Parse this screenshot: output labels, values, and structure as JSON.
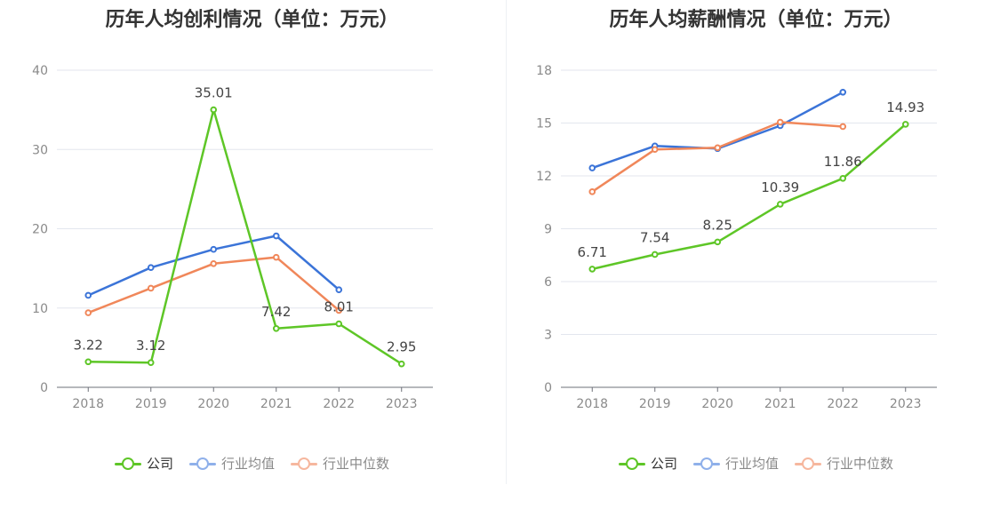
{
  "chart_data": [
    {
      "type": "line",
      "title": "历年人均创利情况（单位：万元）",
      "categories": [
        "2018",
        "2019",
        "2020",
        "2021",
        "2022",
        "2023"
      ],
      "ylim": [
        0,
        40
      ],
      "yticks": [
        0,
        10,
        20,
        30,
        40
      ],
      "grid": true,
      "legend_position": "bottom",
      "series": [
        {
          "name": "公司",
          "color": "#5ec627",
          "values": [
            3.22,
            3.12,
            35.01,
            7.42,
            8.01,
            2.95
          ],
          "labels": [
            "3.22",
            "3.12",
            "35.01",
            "7.42",
            "8.01",
            "2.95"
          ]
        },
        {
          "name": "行业均值",
          "color": "#3b74d8",
          "values": [
            11.6,
            15.1,
            17.4,
            19.1,
            12.3,
            null
          ]
        },
        {
          "name": "行业中位数",
          "color": "#f0875a",
          "values": [
            9.4,
            12.5,
            15.6,
            16.4,
            9.7,
            null
          ]
        }
      ]
    },
    {
      "type": "line",
      "title": "历年人均薪酬情况（单位：万元）",
      "categories": [
        "2018",
        "2019",
        "2020",
        "2021",
        "2022",
        "2023"
      ],
      "ylim": [
        0,
        18
      ],
      "yticks": [
        0,
        3,
        6,
        9,
        12,
        15,
        18
      ],
      "grid": true,
      "legend_position": "bottom",
      "series": [
        {
          "name": "公司",
          "color": "#5ec627",
          "values": [
            6.71,
            7.54,
            8.25,
            10.39,
            11.86,
            14.93
          ],
          "labels": [
            "6.71",
            "7.54",
            "8.25",
            "10.39",
            "11.86",
            "14.93"
          ]
        },
        {
          "name": "行业均值",
          "color": "#3b74d8",
          "values": [
            12.45,
            13.7,
            13.55,
            14.85,
            16.75,
            null
          ]
        },
        {
          "name": "行业中位数",
          "color": "#f0875a",
          "values": [
            11.1,
            13.5,
            13.6,
            15.05,
            14.8,
            null
          ]
        }
      ]
    }
  ],
  "legend_colors": {
    "公司": "#5ec627",
    "行业均值": "#8fb0ea",
    "行业中位数": "#f6b79e"
  }
}
